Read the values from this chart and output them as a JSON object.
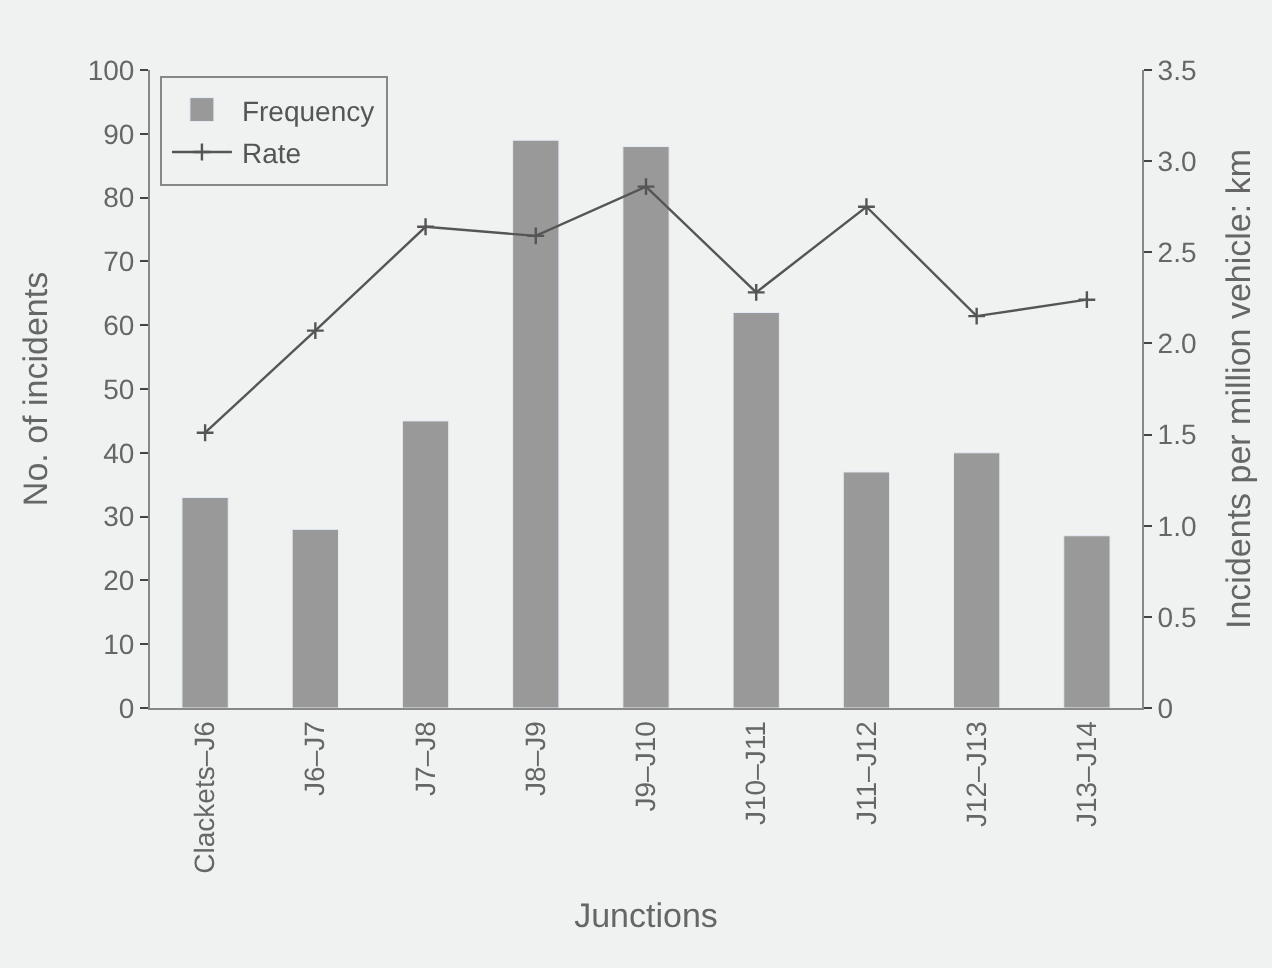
{
  "chart_data": {
    "type": "bar",
    "xlabel": "Junctions",
    "ylabel": "No. of incidents",
    "y2label": "Incidents per million vehicle: km",
    "categories": [
      "Clackets–J6",
      "J6–J7",
      "J7–J8",
      "J8–J9",
      "J9–J10",
      "J10–J11",
      "J11–J12",
      "J12–J13",
      "J13–J14"
    ],
    "series": [
      {
        "name": "Frequency",
        "color": "#999999",
        "values": [
          33,
          28,
          45,
          89,
          88,
          62,
          37,
          40,
          27
        ]
      },
      {
        "name": "Rate",
        "type": "line",
        "axis": "y2",
        "color": "#555555",
        "marker": "cross",
        "values": [
          1.51,
          2.07,
          2.64,
          2.59,
          2.86,
          2.28,
          2.75,
          2.15,
          2.24
        ]
      }
    ],
    "ylim": [
      0,
      100
    ],
    "yticks": [
      0,
      10,
      20,
      30,
      40,
      50,
      60,
      70,
      80,
      90,
      100
    ],
    "y2lim": [
      0,
      3.5
    ],
    "y2ticks": [
      0,
      0.5,
      {
        "value": 1,
        "label": "1.0"
      },
      1.5,
      {
        "value": 2,
        "label": "2.0"
      },
      2.5,
      {
        "value": 3,
        "label": "3.0"
      },
      3.5
    ],
    "legend": "top left",
    "grid": false
  }
}
